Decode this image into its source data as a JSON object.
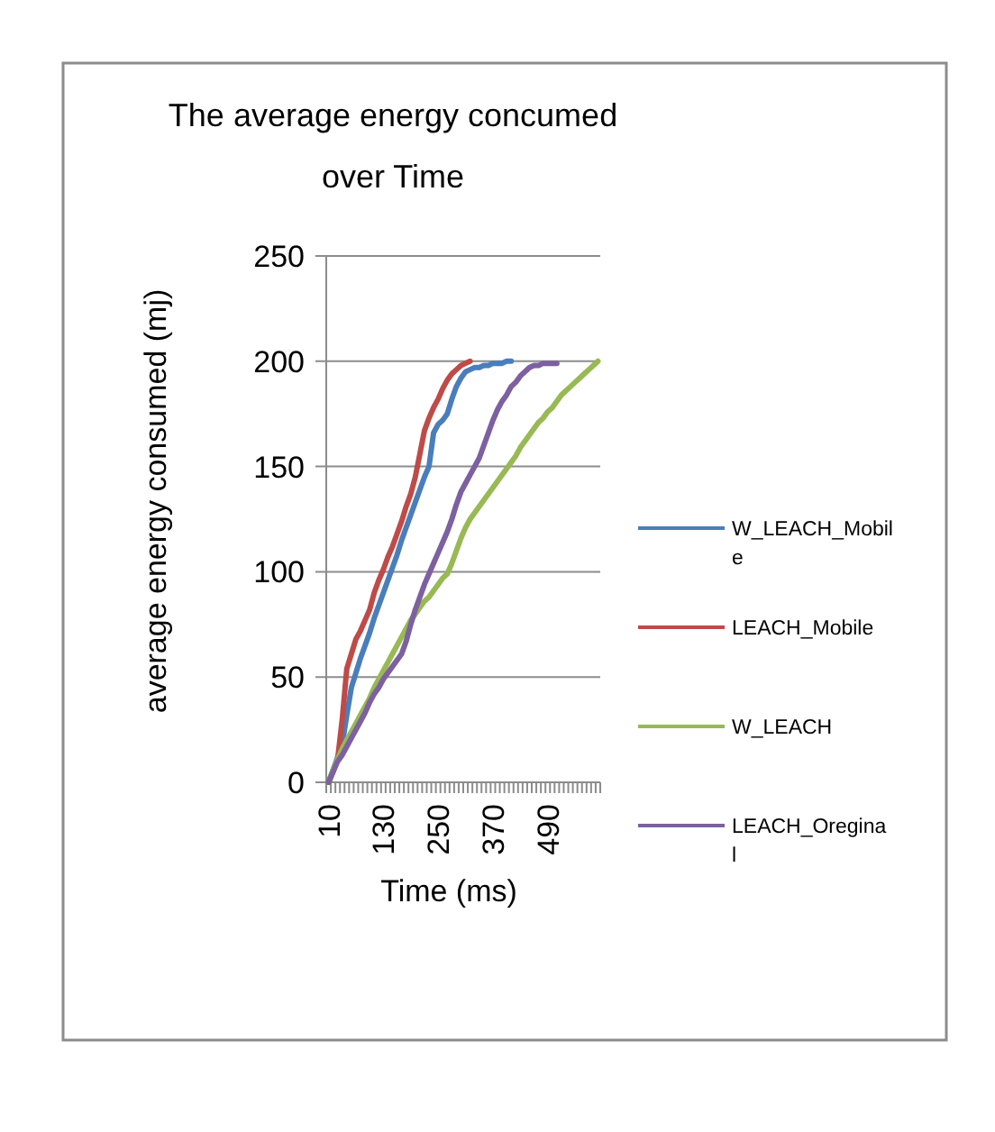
{
  "chart_data": {
    "type": "line",
    "title": "The average energy concumed over Time",
    "xlabel": "Time (ms)",
    "ylabel": "average energy consumed (mj)",
    "categories": [
      "10",
      null,
      null,
      null,
      null,
      null,
      null,
      null,
      null,
      null,
      null,
      null,
      "130",
      null,
      null,
      null,
      null,
      null,
      null,
      null,
      null,
      null,
      null,
      null,
      "250",
      null,
      null,
      null,
      null,
      null,
      null,
      null,
      null,
      null,
      null,
      null,
      "370",
      null,
      null,
      null,
      null,
      null,
      null,
      null,
      null,
      null,
      null,
      null,
      "490",
      null,
      null,
      null,
      null,
      null,
      null,
      null,
      null,
      null,
      null,
      null
    ],
    "ylim": [
      0,
      250
    ],
    "yticks": [
      0,
      50,
      100,
      150,
      200,
      250
    ],
    "grid": "y",
    "legend": "right",
    "marker": "none",
    "line_style": "solid",
    "series": [
      {
        "name": "W_LEACH_Mobile",
        "color": "#4a7ebb",
        "values": [
          0,
          6,
          12,
          18,
          32,
          45,
          52,
          59,
          65,
          71,
          78,
          84,
          90,
          96,
          102,
          108,
          115,
          121,
          127,
          133,
          139,
          145,
          150,
          166,
          170,
          172,
          175,
          182,
          188,
          192,
          195,
          196,
          197,
          197,
          198,
          198,
          199,
          199,
          199,
          200,
          200,
          null,
          null,
          null,
          null,
          null,
          null,
          null,
          null,
          null,
          null,
          null,
          null,
          null,
          null,
          null,
          null,
          null,
          null,
          null
        ]
      },
      {
        "name": "LEACH_Mobile",
        "color": "#be4b48",
        "values": [
          0,
          5,
          11,
          30,
          54,
          61,
          68,
          72,
          77,
          82,
          90,
          96,
          101,
          107,
          112,
          118,
          124,
          131,
          137,
          145,
          156,
          167,
          173,
          178,
          182,
          187,
          191,
          194,
          196,
          198,
          199,
          200,
          null,
          null,
          null,
          null,
          null,
          null,
          null,
          null,
          null,
          null,
          null,
          null,
          null,
          null,
          null,
          null,
          null,
          null,
          null,
          null,
          null,
          null,
          null,
          null,
          null,
          null,
          null,
          null
        ]
      },
      {
        "name": "W_LEACH",
        "color": "#98b954",
        "values": [
          0,
          6,
          11,
          16,
          20,
          24,
          28,
          32,
          36,
          40,
          45,
          49,
          53,
          57,
          61,
          65,
          69,
          73,
          77,
          80,
          83,
          86,
          88,
          91,
          94,
          97,
          99,
          104,
          110,
          116,
          121,
          125,
          128,
          131,
          134,
          137,
          140,
          143,
          146,
          149,
          152,
          155,
          159,
          162,
          165,
          168,
          171,
          173,
          176,
          178,
          181,
          184,
          186,
          188,
          190,
          192,
          194,
          196,
          198,
          200
        ]
      },
      {
        "name": "LEACH_Oreginal",
        "color": "#7d60a0",
        "values": [
          0,
          5,
          10,
          13,
          17,
          21,
          25,
          29,
          33,
          38,
          42,
          45,
          49,
          52,
          55,
          58,
          61,
          67,
          75,
          82,
          88,
          94,
          99,
          104,
          109,
          114,
          119,
          125,
          132,
          138,
          142,
          146,
          150,
          154,
          160,
          166,
          172,
          177,
          181,
          184,
          188,
          190,
          193,
          195,
          197,
          198,
          198,
          199,
          199,
          199,
          199,
          null,
          null,
          null,
          null,
          null,
          null,
          null,
          null,
          null
        ]
      }
    ]
  }
}
